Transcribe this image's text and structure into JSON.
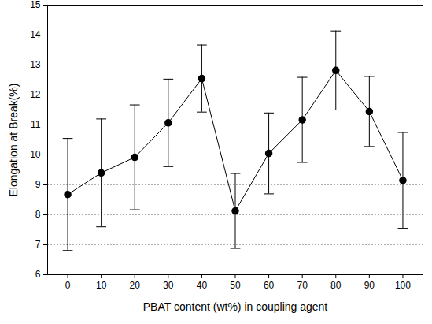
{
  "chart_data": {
    "type": "line",
    "x_label": "PBAT content (wt%) in coupling agent",
    "y_label": "Elongation at Break(%)",
    "x": [
      0,
      10,
      20,
      30,
      40,
      50,
      60,
      70,
      80,
      90,
      100
    ],
    "values": [
      8.68,
      9.4,
      9.92,
      11.07,
      12.55,
      8.13,
      10.05,
      11.17,
      12.82,
      11.45,
      9.15
    ],
    "errors": [
      1.87,
      1.8,
      1.75,
      1.46,
      1.12,
      1.25,
      1.35,
      1.42,
      1.32,
      1.17,
      1.6
    ],
    "color": "#000000",
    "marker": "circle",
    "line_style": "solid",
    "xlim": [
      -6,
      106
    ],
    "xticks": [
      0,
      10,
      20,
      30,
      40,
      50,
      60,
      70,
      80,
      90,
      100
    ],
    "ylim": [
      6,
      15
    ],
    "yticks": [
      6,
      7,
      8,
      9,
      10,
      11,
      12,
      13,
      14,
      15
    ],
    "grid": true
  }
}
